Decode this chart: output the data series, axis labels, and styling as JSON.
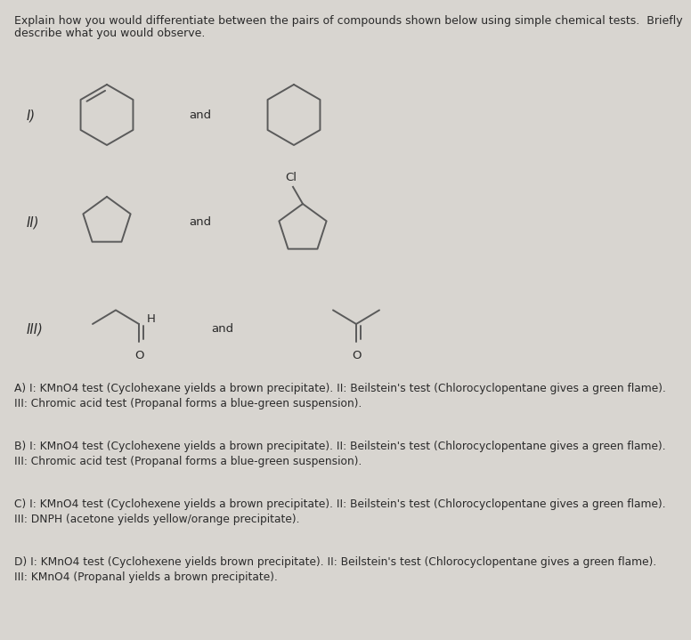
{
  "background_color": "#d8d5d0",
  "text_color": "#2a2a2a",
  "header_line1": "Explain how you would differentiate between the pairs of compounds shown below using simple chemical tests.  Briefly",
  "header_line2": "describe what you would observe.",
  "answer_A": "A) I: KMnO4 test (Cyclohexane yields a brown precipitate). II: Beilstein's test (Chlorocyclopentane gives a green flame).\nIII: Chromic acid test (Propanal forms a blue-green suspension).",
  "answer_B": "B) I: KMnO4 test (Cyclohexene yields a brown precipitate). II: Beilstein's test (Chlorocyclopentane gives a green flame).\nIII: Chromic acid test (Propanal forms a blue-green suspension).",
  "answer_C": "C) I: KMnO4 test (Cyclohexene yields a brown precipitate). II: Beilstein's test (Chlorocyclopentane gives a green flame).\nIII: DNPH (acetone yields yellow/orange precipitate).",
  "answer_D": "D) I: KMnO4 test (Cyclohexene yields brown precipitate). II: Beilstein's test (Chlorocyclopentane gives a green flame).\nIII: KMnO4 (Propanal yields a brown precipitate).",
  "line_color": "#5a5a5a",
  "font_size_header": 9.0,
  "font_size_label": 10.5,
  "font_size_and": 9.5,
  "font_size_answer": 8.8,
  "font_size_atom": 9.5
}
